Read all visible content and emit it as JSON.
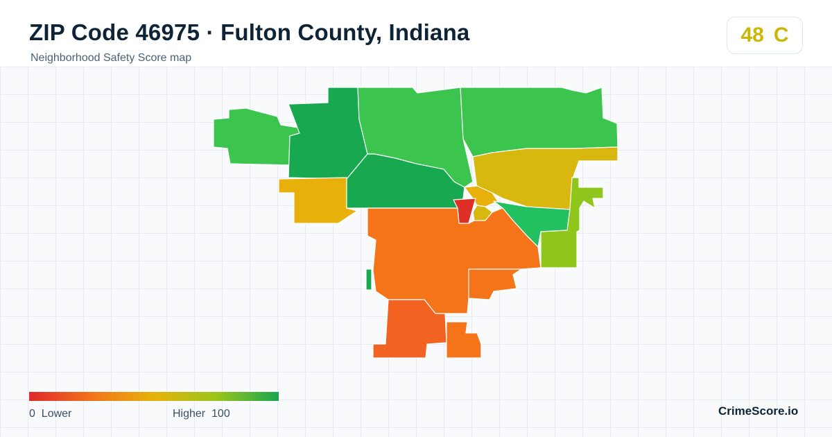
{
  "header": {
    "title": "ZIP Code 46975 · Fulton County, Indiana",
    "subtitle": "Neighborhood Safety Score map"
  },
  "score": {
    "value": "48",
    "grade": "C",
    "color": "#c9b80a"
  },
  "legend": {
    "min_value": "0",
    "min_label": "Lower",
    "max_label": "Higher",
    "max_value": "100",
    "gradient_colors": [
      "#e0292c",
      "#f2731b",
      "#e6b20b",
      "#9bc51a",
      "#19a650"
    ]
  },
  "brand": "CrimeScore.io",
  "regions_colors": {
    "dark_green": "#18a850",
    "green": "#3cc54e",
    "mint_green": "#22c05e",
    "yellow_green": "#8ec61b",
    "yellow": "#d8b70e",
    "amber": "#e8b00b",
    "orange": "#f5741a",
    "deep_orange": "#f26220",
    "red": "#de3027"
  }
}
